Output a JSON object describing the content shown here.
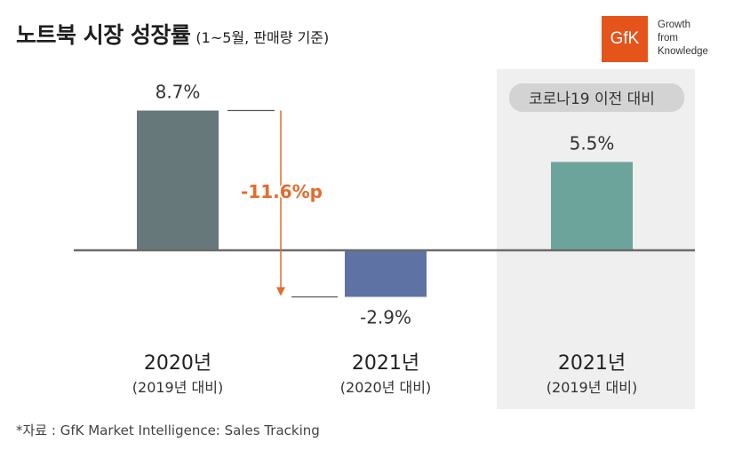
{
  "title": {
    "main": "노트북 시장 성장률",
    "sub": "(1~5월, 판매량 기준)"
  },
  "logo": {
    "text": "GfK",
    "tagline": [
      "Growth",
      "from",
      "Knowledge"
    ],
    "color": "#e5541b"
  },
  "chart_data": {
    "type": "bar",
    "categories": [
      "2020년",
      "2021년",
      "2021년"
    ],
    "category_sublabels": [
      "(2019년 대비)",
      "(2020년 대비)",
      "(2019년 대비)"
    ],
    "values": [
      8.7,
      -2.9,
      5.5
    ],
    "value_labels": [
      "8.7%",
      "-2.9%",
      "5.5%"
    ],
    "colors": [
      "#67787a",
      "#5e72a3",
      "#6ca49c"
    ],
    "unit": "%",
    "ylim": [
      -4,
      10
    ],
    "grid": false,
    "legend": "none",
    "annotations": {
      "difference": "-11.6%p",
      "difference_color": "#e36b2c",
      "highlight_badge": "코로나19 이전 대비",
      "highlight_category_index": 2
    }
  },
  "source": "*자료 : GfK Market Intelligence: Sales Tracking"
}
